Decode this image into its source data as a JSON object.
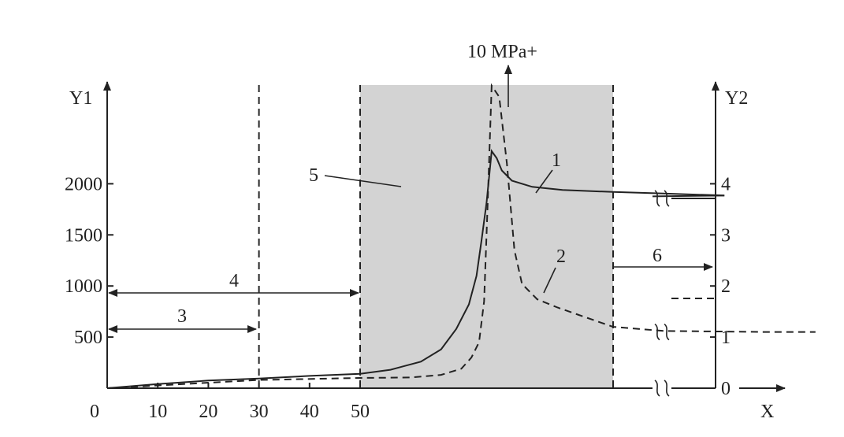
{
  "chart_data": {
    "type": "line",
    "left_axis": {
      "label": "Y1",
      "ticks": [
        500,
        1000,
        1500,
        2000
      ],
      "range": [
        0,
        2850
      ]
    },
    "right_axis": {
      "label": "Y2",
      "ticks": [
        0,
        1,
        2,
        3,
        4
      ],
      "range": [
        0,
        5.85
      ]
    },
    "x_axis": {
      "label": "X",
      "ticks": [
        0,
        10,
        20,
        30,
        40,
        50
      ],
      "origin_label": "0"
    },
    "series": [
      {
        "name": "1",
        "style": "solid",
        "x": [
          0,
          10,
          20,
          30,
          40,
          50,
          56,
          62,
          66,
          69,
          71.5,
          73,
          74,
          75,
          76,
          77,
          78,
          80,
          84,
          90,
          100,
          110,
          122
        ],
        "y": [
          0,
          40,
          75,
          95,
          120,
          140,
          180,
          260,
          380,
          580,
          820,
          1100,
          1450,
          1820,
          2320,
          2250,
          2130,
          2030,
          1970,
          1940,
          1920,
          1905,
          1885
        ]
      },
      {
        "name": "2",
        "style": "dashed",
        "x": [
          0,
          30,
          50,
          60,
          66,
          70,
          72,
          73.5,
          74.5,
          75.2,
          76,
          77.5,
          79,
          80.5,
          82,
          85,
          89,
          93,
          100,
          110,
          130,
          140
        ],
        "y": [
          0,
          80,
          100,
          105,
          130,
          190,
          300,
          450,
          850,
          1800,
          3000,
          2850,
          2200,
          1350,
          1020,
          870,
          790,
          720,
          600,
          560,
          550,
          550
        ]
      }
    ],
    "shaded_region": {
      "x_start": 50,
      "x_end": 100,
      "color": "#d3d3d3"
    },
    "vertical_dashed_lines": [
      30,
      50,
      100
    ],
    "annotations": {
      "arrow_top": "10 MPa+",
      "label_1": "1",
      "label_2": "2",
      "label_3": "3",
      "label_4": "4",
      "label_5": "5",
      "label_6": "6"
    }
  }
}
